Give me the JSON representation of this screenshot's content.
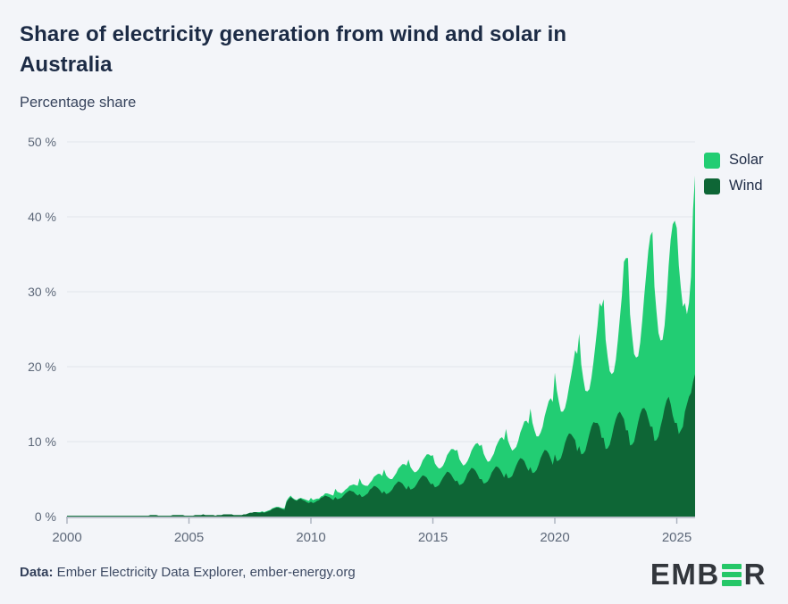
{
  "header": {
    "title_line1": "Share of electricity generation from wind and solar in",
    "title_line2": "Australia",
    "subtitle": "Percentage share"
  },
  "legend": {
    "solar_label": "Solar",
    "wind_label": "Wind"
  },
  "footer": {
    "source_label": "Data:",
    "source_text": " Ember Electricity Data Explorer, ember-energy.org"
  },
  "logo": {
    "left_text": "EMB",
    "right_text": "R",
    "green": "#25c768"
  },
  "colors": {
    "solar": "#22cd73",
    "wind": "#0e6636",
    "gridline": "#e2e5ec",
    "axis": "#a9b0bd",
    "background": "#f3f5f9"
  },
  "chart_data": {
    "type": "area",
    "stacked": true,
    "title": "Share of electricity generation from wind and solar in Australia",
    "ylabel": "Percentage share",
    "x_start_year": 2000,
    "x_months_per_point": 1,
    "x_end": "2025-10",
    "ylim": [
      0,
      50
    ],
    "grid": true,
    "legend_position": "top-right",
    "x_ticks": [
      2000,
      2005,
      2010,
      2015,
      2020,
      2025
    ],
    "x_tick_labels": [
      "2000",
      "2005",
      "2010",
      "2015",
      "2020",
      "2025"
    ],
    "y_ticks": [
      0,
      10,
      20,
      30,
      40,
      50
    ],
    "y_tick_labels": [
      "0 %",
      "10 %",
      "20 %",
      "30 %",
      "40 %",
      "50 %"
    ],
    "series": [
      {
        "name": "Solar",
        "color": "#22cd73",
        "values": [
          0,
          0,
          0,
          0,
          0,
          0,
          0,
          0,
          0,
          0,
          0,
          0,
          0,
          0,
          0,
          0,
          0,
          0,
          0,
          0,
          0,
          0,
          0,
          0,
          0,
          0,
          0,
          0,
          0,
          0,
          0,
          0,
          0,
          0,
          0,
          0,
          0,
          0,
          0,
          0,
          0,
          0,
          0,
          0,
          0,
          0,
          0,
          0,
          0,
          0,
          0,
          0,
          0,
          0,
          0,
          0,
          0,
          0,
          0,
          0,
          0,
          0,
          0,
          0,
          0,
          0,
          0,
          0,
          0,
          0,
          0,
          0,
          0,
          0,
          0,
          0,
          0,
          0,
          0,
          0,
          0,
          0,
          0,
          0,
          0,
          0,
          0,
          0,
          0,
          0,
          0,
          0,
          0,
          0,
          0.1,
          0.1,
          0.1,
          0.1,
          0.1,
          0.1,
          0.1,
          0.1,
          0.1,
          0.1,
          0.1,
          0.1,
          0.1,
          0.2,
          0.2,
          0.2,
          0.2,
          0.1,
          0.1,
          0.1,
          0.1,
          0.1,
          0.2,
          0.2,
          0.3,
          0.3,
          0.5,
          0.4,
          0.4,
          0.3,
          0.2,
          0.2,
          0.2,
          0.3,
          0.4,
          0.4,
          0.5,
          0.6,
          1.1,
          1.0,
          0.8,
          0.6,
          0.5,
          0.5,
          0.5,
          0.6,
          0.8,
          1.0,
          1.2,
          1.3,
          2.1,
          1.8,
          1.5,
          1.2,
          1.0,
          0.9,
          1.0,
          1.2,
          1.5,
          1.9,
          2.2,
          2.3,
          2.9,
          2.5,
          2.1,
          1.7,
          1.4,
          1.3,
          1.4,
          1.7,
          2.1,
          2.6,
          3.0,
          3.2,
          3.5,
          3.0,
          2.5,
          2.0,
          1.7,
          1.5,
          1.6,
          2.0,
          2.5,
          3.1,
          3.6,
          3.8,
          3.8,
          3.2,
          2.7,
          2.2,
          1.8,
          1.6,
          1.8,
          2.2,
          2.7,
          3.4,
          3.9,
          4.1,
          4.1,
          3.5,
          2.9,
          2.3,
          2.0,
          1.7,
          1.9,
          2.3,
          2.9,
          3.6,
          4.2,
          4.4,
          4.6,
          4.0,
          3.3,
          2.6,
          2.2,
          2.0,
          2.1,
          2.6,
          3.3,
          4.1,
          4.8,
          5.0,
          5.9,
          5.0,
          4.2,
          3.4,
          2.9,
          2.5,
          2.7,
          3.4,
          4.2,
          5.3,
          6.1,
          6.3,
          7.8,
          6.7,
          5.6,
          4.5,
          3.8,
          3.4,
          3.6,
          4.5,
          5.6,
          7.0,
          8.1,
          8.4,
          10.9,
          9.4,
          7.8,
          6.2,
          5.3,
          4.7,
          5.1,
          6.2,
          7.8,
          9.8,
          12.0,
          13.0,
          15.0,
          12.0,
          10.0,
          8.0,
          6.8,
          6.0,
          6.5,
          8.0,
          10.5,
          13.0,
          16.5,
          17.5,
          18.5,
          14.6,
          12.2,
          9.8,
          8.3,
          7.3,
          7.9,
          9.8,
          12.5,
          16.0,
          21.0,
          23.0,
          23.0,
          17.5,
          14.6,
          11.7,
          9.9,
          8.8,
          9.5,
          11.7,
          15.0,
          18.5,
          22.5,
          25.5,
          26.0,
          20.6,
          17.2,
          13.8,
          11.5,
          10.5,
          11.0,
          13.5,
          17.5,
          22.0,
          25.5,
          27.0,
          26.0,
          22.5,
          19.0,
          16.0,
          14.5,
          12.0,
          12.5,
          15.5,
          23.0,
          26.5
        ]
      },
      {
        "name": "Wind",
        "color": "#0e6636",
        "values": [
          0.1,
          0.1,
          0.1,
          0.1,
          0.1,
          0.1,
          0.1,
          0.1,
          0.1,
          0.1,
          0.1,
          0.1,
          0.1,
          0.1,
          0.1,
          0.1,
          0.1,
          0.1,
          0.1,
          0.1,
          0.1,
          0.1,
          0.1,
          0.1,
          0.1,
          0.1,
          0.1,
          0.1,
          0.1,
          0.1,
          0.1,
          0.1,
          0.1,
          0.1,
          0.1,
          0.1,
          0.1,
          0.1,
          0.1,
          0.1,
          0.1,
          0.2,
          0.2,
          0.2,
          0.2,
          0.1,
          0.1,
          0.1,
          0.1,
          0.1,
          0.1,
          0.1,
          0.2,
          0.2,
          0.2,
          0.2,
          0.2,
          0.2,
          0.1,
          0.1,
          0.1,
          0.1,
          0.1,
          0.2,
          0.2,
          0.2,
          0.2,
          0.3,
          0.2,
          0.2,
          0.2,
          0.2,
          0.2,
          0.1,
          0.2,
          0.2,
          0.2,
          0.3,
          0.3,
          0.3,
          0.3,
          0.3,
          0.2,
          0.2,
          0.2,
          0.2,
          0.2,
          0.3,
          0.3,
          0.4,
          0.5,
          0.5,
          0.6,
          0.6,
          0.5,
          0.5,
          0.6,
          0.5,
          0.6,
          0.7,
          0.8,
          1.0,
          1.1,
          1.2,
          1.2,
          1.1,
          1.0,
          0.9,
          1.9,
          2.3,
          2.6,
          2.4,
          2.2,
          2.1,
          2.3,
          2.4,
          2.2,
          2.1,
          1.9,
          1.8,
          2.0,
          1.8,
          1.9,
          2.1,
          2.2,
          2.5,
          2.6,
          2.8,
          2.7,
          2.6,
          2.4,
          2.2,
          2.6,
          2.3,
          2.4,
          2.5,
          2.8,
          3.1,
          3.3,
          3.5,
          3.4,
          3.3,
          3.0,
          2.8,
          3.0,
          2.6,
          2.7,
          2.9,
          3.1,
          3.6,
          3.8,
          4.1,
          4.0,
          3.8,
          3.5,
          3.1,
          3.4,
          3.0,
          3.1,
          3.3,
          3.6,
          4.1,
          4.4,
          4.7,
          4.6,
          4.4,
          4.0,
          3.6,
          4.1,
          3.6,
          3.7,
          3.9,
          4.3,
          4.8,
          5.2,
          5.5,
          5.4,
          5.2,
          4.7,
          4.3,
          4.4,
          3.9,
          4.0,
          4.2,
          4.7,
          5.2,
          5.6,
          6.0,
          5.9,
          5.6,
          5.1,
          4.7,
          4.8,
          4.2,
          4.3,
          4.5,
          5.0,
          5.7,
          6.1,
          6.5,
          6.4,
          6.1,
          5.6,
          5.0,
          5.0,
          4.4,
          4.5,
          4.7,
          5.2,
          5.9,
          6.3,
          6.7,
          6.6,
          6.3,
          5.8,
          5.2,
          5.8,
          5.1,
          5.2,
          5.4,
          6.1,
          6.8,
          7.4,
          7.8,
          7.7,
          7.4,
          6.7,
          6.1,
          6.6,
          5.8,
          5.9,
          6.2,
          6.9,
          7.8,
          8.4,
          8.9,
          8.8,
          8.4,
          7.7,
          6.9,
          8.3,
          7.4,
          7.5,
          7.8,
          8.7,
          9.8,
          10.6,
          11.1,
          11.0,
          10.6,
          10.2,
          8.7,
          9.4,
          8.3,
          8.4,
          8.8,
          9.9,
          11.0,
          12.0,
          12.6,
          12.5,
          12.5,
          12.0,
          10.5,
          10.5,
          9.0,
          9.1,
          9.6,
          10.7,
          12.0,
          13.0,
          13.7,
          14.0,
          13.5,
          13.0,
          11.5,
          11.5,
          9.5,
          9.6,
          10.0,
          11.3,
          12.6,
          13.7,
          14.4,
          14.5,
          14.0,
          13.0,
          12.0,
          12.0,
          10.1,
          10.2,
          10.7,
          12.0,
          13.1,
          14.5,
          15.5,
          16.0,
          15.0,
          13.5,
          12.5,
          12.5,
          11.0,
          11.5,
          12.0,
          14.0,
          15.0,
          16.0,
          16.5,
          18.0,
          19.0
        ]
      }
    ]
  }
}
